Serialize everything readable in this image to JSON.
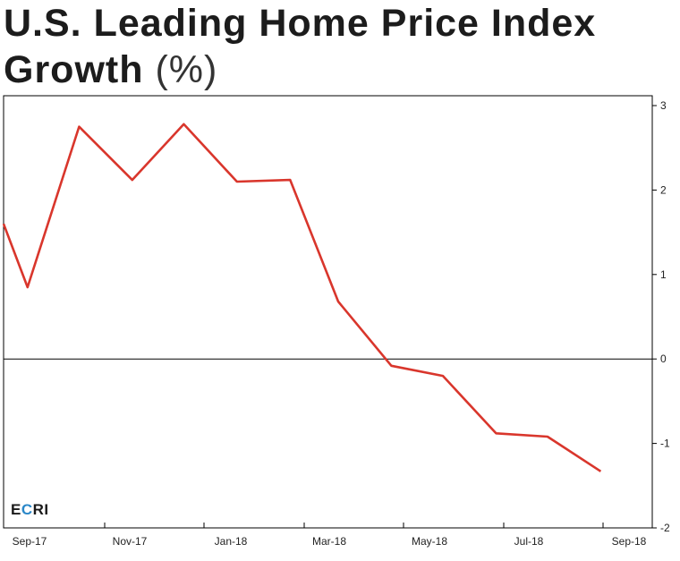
{
  "title_line1": "U.S. Leading Home Price Index",
  "title_line2": "Growth",
  "title_unit": "(%)",
  "logo": "ECRI",
  "colors": {
    "line": "#d9362c",
    "axis": "#000000",
    "logo_accent": "#2a87c8"
  },
  "chart_data": {
    "type": "line",
    "title": "U.S. Leading Home Price Index Growth (%)",
    "x_ticks": [
      "Sep-17",
      "Nov-17",
      "Jan-18",
      "Mar-18",
      "May-18",
      "Jul-18",
      "Sep-18"
    ],
    "y_ticks": [
      3,
      2,
      1,
      0,
      -1,
      -2
    ],
    "ylim": [
      -2,
      3
    ],
    "xlim": [
      "2017-09",
      "2018-09"
    ],
    "y_axis_position": "right",
    "zero_line": true,
    "grid": false,
    "series": [
      {
        "x": [
          "2017-09-01",
          "2017-09-15",
          "2017-10-15",
          "2017-11-15",
          "2017-12-15",
          "2018-01-15",
          "2018-02-15",
          "2018-03-15",
          "2018-04-15",
          "2018-05-15",
          "2018-06-15",
          "2018-07-15",
          "2018-08-15"
        ],
        "values": [
          1.6,
          0.85,
          2.75,
          2.12,
          2.78,
          2.1,
          2.12,
          0.68,
          -0.08,
          -0.2,
          -0.88,
          -0.92,
          -1.33
        ]
      }
    ]
  }
}
